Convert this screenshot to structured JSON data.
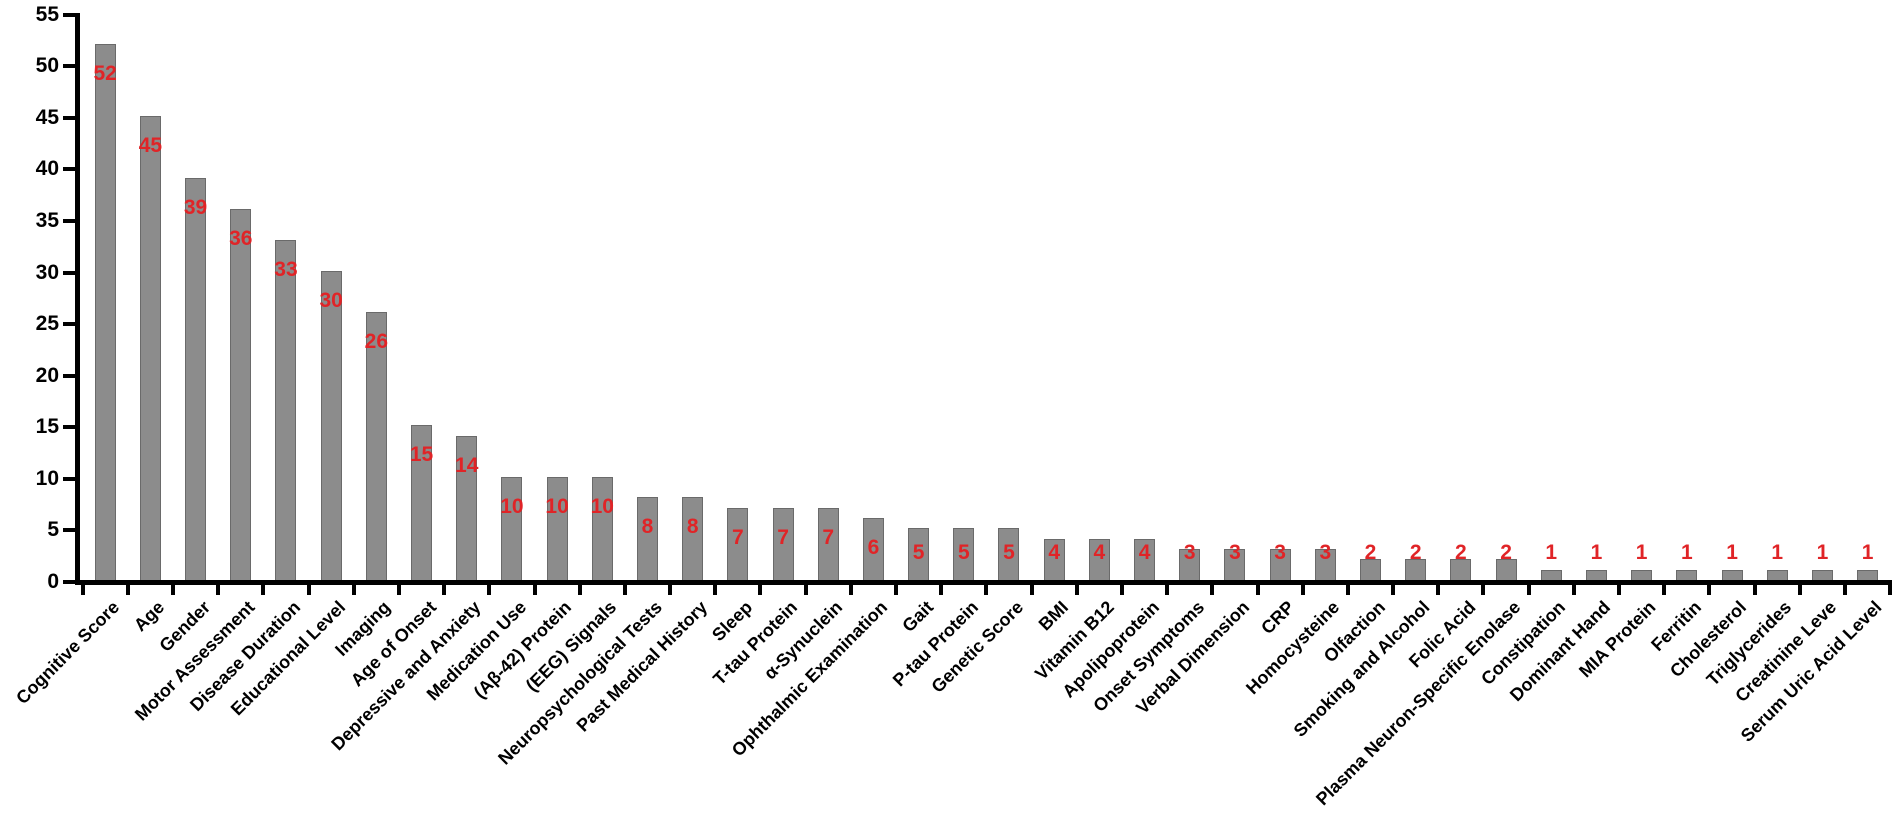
{
  "chart_data": {
    "type": "bar",
    "title": "",
    "xlabel": "",
    "ylabel": "",
    "ylim": [
      0,
      55
    ],
    "ytick_step": 5,
    "ytick_labels": [
      "0",
      "5",
      "10",
      "15",
      "20",
      "25",
      "30",
      "35",
      "40",
      "45",
      "50",
      "55"
    ],
    "grid": "off",
    "legend": "none",
    "bar_color": "#8c8c8c",
    "bar_border_color": "#6a6a6a",
    "value_label_color": "#e02427",
    "axis_color": "#000000",
    "tick_label_color": "#000000",
    "categories": [
      "Cognitive Score",
      "Age",
      "Gender",
      "Motor Assessment",
      "Disease Duration",
      "Educational Level",
      "Imaging",
      "Age of Onset",
      "Depressive and Anxiety",
      "Medication Use",
      "(Aβ-42) Protein",
      "(EEG) Signals",
      "Neuropsychological Tests",
      "Past Medical History",
      "Sleep",
      "T-tau Protein",
      "α-Synuclein",
      "Ophthalmic Examination",
      "Gait",
      "P-tau Protein",
      "Genetic Score",
      "BMI",
      "Vitamin B12",
      "Apolipoprotein",
      "Onset Symptoms",
      "Verbal Dimension",
      "CRP",
      "Homocysteine",
      "Olfaction",
      "Smoking and Alcohol",
      "Folic Acid",
      "Plasma Neuron-Specific Enolase",
      "Constipation",
      "Dominant Hand",
      "MIA Protein",
      "Ferritin",
      "Cholesterol",
      "Triglycerides",
      "Creatinine Leve",
      "Serum Uric Acid Level"
    ],
    "values": [
      52,
      45,
      39,
      36,
      33,
      30,
      26,
      15,
      14,
      10,
      10,
      10,
      8,
      8,
      7,
      7,
      7,
      6,
      5,
      5,
      5,
      4,
      4,
      4,
      3,
      3,
      3,
      3,
      2,
      2,
      2,
      2,
      1,
      1,
      1,
      1,
      1,
      1,
      1,
      1
    ]
  }
}
